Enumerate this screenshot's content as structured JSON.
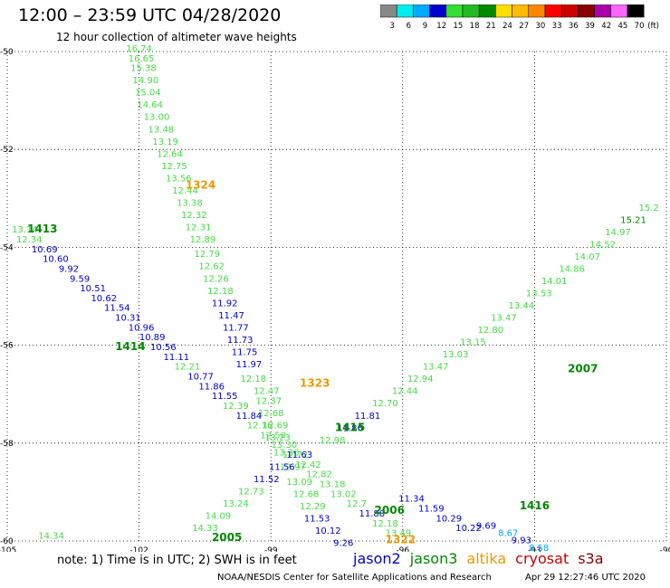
{
  "header": {
    "title": "12:00 – 23:59 UTC 04/28/2020",
    "subtitle": "12 hour collection of altimeter wave heights"
  },
  "colorbar": {
    "labels": [
      "3",
      "6",
      "9",
      "12",
      "15",
      "18",
      "21",
      "24",
      "27",
      "30",
      "33",
      "36",
      "39",
      "42",
      "45",
      "70"
    ],
    "unit": "(ft)",
    "colors": [
      "#888888",
      "#00eeee",
      "#00aaff",
      "#0000cc",
      "#33dd33",
      "#22bb22",
      "#008800",
      "#ffdd00",
      "#ffbb00",
      "#ff8800",
      "#ff0000",
      "#cc0000",
      "#880000",
      "#aa00aa",
      "#ff66ff",
      "#000000"
    ]
  },
  "chart_data": {
    "type": "scatter",
    "xlim": [
      -105,
      -90
    ],
    "ylim": [
      -60,
      -50
    ],
    "x_ticks": [
      "-105",
      "-102",
      "-99",
      "-96",
      "-93",
      "-90"
    ],
    "y_ticks": [
      "-50",
      "-52",
      "-54",
      "-56",
      "-58",
      "-60"
    ],
    "grid": "dotted",
    "series_colors": {
      "jason2": "#0000cc",
      "jason3_light": "#44dd44",
      "jason3_dark": "#008800",
      "altika": "#ee9900",
      "s3a": "#00aaff"
    },
    "points": [
      {
        "lon": -102.0,
        "lat": -50.0,
        "text": "16.74",
        "c": "jason3_light"
      },
      {
        "lon": -101.95,
        "lat": -50.2,
        "text": "16.65",
        "c": "jason3_light"
      },
      {
        "lon": -101.9,
        "lat": -50.4,
        "text": "15.38",
        "c": "jason3_light"
      },
      {
        "lon": -101.85,
        "lat": -50.65,
        "text": "14.90",
        "c": "jason3_light"
      },
      {
        "lon": -101.8,
        "lat": -50.9,
        "text": "15.04",
        "c": "jason3_light"
      },
      {
        "lon": -101.75,
        "lat": -51.15,
        "text": "14.64",
        "c": "jason3_light"
      },
      {
        "lon": -101.6,
        "lat": -51.4,
        "text": "13.00",
        "c": "jason3_light"
      },
      {
        "lon": -101.5,
        "lat": -51.65,
        "text": "13.48",
        "c": "jason3_light"
      },
      {
        "lon": -101.4,
        "lat": -51.9,
        "text": "13.19",
        "c": "jason3_light"
      },
      {
        "lon": -101.3,
        "lat": -52.15,
        "text": "12.64",
        "c": "jason3_light"
      },
      {
        "lon": -101.2,
        "lat": -52.4,
        "text": "12.75",
        "c": "jason3_light"
      },
      {
        "lon": -101.1,
        "lat": -52.65,
        "text": "13.56",
        "c": "jason3_light"
      },
      {
        "lon": -100.95,
        "lat": -52.9,
        "text": "12.44",
        "c": "jason3_light"
      },
      {
        "lon": -100.85,
        "lat": -53.15,
        "text": "13.38",
        "c": "jason3_light"
      },
      {
        "lon": -100.75,
        "lat": -53.4,
        "text": "12.32",
        "c": "jason3_light"
      },
      {
        "lon": -100.65,
        "lat": -53.65,
        "text": "12.31",
        "c": "jason3_light"
      },
      {
        "lon": -100.55,
        "lat": -53.9,
        "text": "12.89",
        "c": "jason3_light"
      },
      {
        "lon": -100.45,
        "lat": -54.2,
        "text": "12.79",
        "c": "jason3_light"
      },
      {
        "lon": -100.35,
        "lat": -54.45,
        "text": "12.62",
        "c": "jason3_light"
      },
      {
        "lon": -100.25,
        "lat": -54.7,
        "text": "12.26",
        "c": "jason3_light"
      },
      {
        "lon": -100.15,
        "lat": -54.95,
        "text": "12.18",
        "c": "jason3_light"
      },
      {
        "lon": -100.05,
        "lat": -55.2,
        "text": "11.92",
        "c": "jason2"
      },
      {
        "lon": -99.9,
        "lat": -55.45,
        "text": "11.47",
        "c": "jason2"
      },
      {
        "lon": -99.8,
        "lat": -55.7,
        "text": "11.77",
        "c": "jason2"
      },
      {
        "lon": -99.7,
        "lat": -55.95,
        "text": "11.73",
        "c": "jason2"
      },
      {
        "lon": -99.6,
        "lat": -56.2,
        "text": "11.75",
        "c": "jason2"
      },
      {
        "lon": -99.5,
        "lat": -56.45,
        "text": "11.97",
        "c": "jason2"
      },
      {
        "lon": -99.4,
        "lat": -56.75,
        "text": "12.18",
        "c": "jason3_light"
      },
      {
        "lon": -99.1,
        "lat": -57.0,
        "text": "12.47",
        "c": "jason3_light"
      },
      {
        "lon": -99.05,
        "lat": -57.2,
        "text": "12.37",
        "c": "jason3_light"
      },
      {
        "lon": -99.0,
        "lat": -57.45,
        "text": "12.68",
        "c": "jason3_light"
      },
      {
        "lon": -98.9,
        "lat": -57.7,
        "text": "12.69",
        "c": "jason3_light"
      },
      {
        "lon": -98.85,
        "lat": -57.95,
        "text": "13.23",
        "c": "jason3_light"
      },
      {
        "lon": -98.65,
        "lat": -58.25,
        "text": "13.26",
        "c": "jason3_light"
      },
      {
        "lon": -98.5,
        "lat": -58.55,
        "text": "12.97",
        "c": "jason3_light"
      },
      {
        "lon": -98.35,
        "lat": -58.85,
        "text": "13.09",
        "c": "jason3_light"
      },
      {
        "lon": -98.2,
        "lat": -59.1,
        "text": "12.68",
        "c": "jason3_light"
      },
      {
        "lon": -98.05,
        "lat": -59.35,
        "text": "12.29",
        "c": "jason3_light"
      },
      {
        "lon": -97.95,
        "lat": -59.6,
        "text": "11.53",
        "c": "jason2"
      },
      {
        "lon": -97.7,
        "lat": -59.85,
        "text": "10.12",
        "c": "jason2"
      },
      {
        "lon": -97.35,
        "lat": -60.1,
        "text": "9.26",
        "c": "jason2"
      },
      {
        "lon": -104.6,
        "lat": -53.7,
        "text": "13.14",
        "c": "jason3_light"
      },
      {
        "lon": -104.5,
        "lat": -53.9,
        "text": "12.34",
        "c": "jason3_light"
      },
      {
        "lon": -104.15,
        "lat": -54.1,
        "text": "10.69",
        "c": "jason2"
      },
      {
        "lon": -103.9,
        "lat": -54.3,
        "text": "10.60",
        "c": "jason2"
      },
      {
        "lon": -103.6,
        "lat": -54.5,
        "text": "9.92",
        "c": "jason2"
      },
      {
        "lon": -103.35,
        "lat": -54.7,
        "text": "9.59",
        "c": "jason2"
      },
      {
        "lon": -103.05,
        "lat": -54.9,
        "text": "10.51",
        "c": "jason2"
      },
      {
        "lon": -102.8,
        "lat": -55.1,
        "text": "10.62",
        "c": "jason2"
      },
      {
        "lon": -102.5,
        "lat": -55.3,
        "text": "11.54",
        "c": "jason2"
      },
      {
        "lon": -102.25,
        "lat": -55.5,
        "text": "10.31",
        "c": "jason2"
      },
      {
        "lon": -101.95,
        "lat": -55.7,
        "text": "10.96",
        "c": "jason2"
      },
      {
        "lon": -101.7,
        "lat": -55.9,
        "text": "10.89",
        "c": "jason2"
      },
      {
        "lon": -101.45,
        "lat": -56.1,
        "text": "10.56",
        "c": "jason2"
      },
      {
        "lon": -101.15,
        "lat": -56.3,
        "text": "11.11",
        "c": "jason2"
      },
      {
        "lon": -100.9,
        "lat": -56.5,
        "text": "12.21",
        "c": "jason3_light"
      },
      {
        "lon": -100.6,
        "lat": -56.7,
        "text": "10.77",
        "c": "jason2"
      },
      {
        "lon": -100.35,
        "lat": -56.9,
        "text": "11.86",
        "c": "jason2"
      },
      {
        "lon": -100.05,
        "lat": -57.1,
        "text": "11.55",
        "c": "jason2"
      },
      {
        "lon": -99.8,
        "lat": -57.3,
        "text": "12.39",
        "c": "jason3_light"
      },
      {
        "lon": -99.5,
        "lat": -57.5,
        "text": "11.84",
        "c": "jason2"
      },
      {
        "lon": -99.25,
        "lat": -57.7,
        "text": "12.16",
        "c": "jason3_light"
      },
      {
        "lon": -98.95,
        "lat": -57.9,
        "text": "12.50",
        "c": "jason3_light"
      },
      {
        "lon": -98.7,
        "lat": -58.1,
        "text": "13.30",
        "c": "jason3_light"
      },
      {
        "lon": -98.45,
        "lat": -58.3,
        "text": "12.72",
        "c": "jason3_light"
      },
      {
        "lon": -98.15,
        "lat": -58.5,
        "text": "12.42",
        "c": "jason3_light"
      },
      {
        "lon": -97.9,
        "lat": -58.7,
        "text": "12.82",
        "c": "jason3_light"
      },
      {
        "lon": -97.6,
        "lat": -58.9,
        "text": "13.18",
        "c": "jason3_light"
      },
      {
        "lon": -97.35,
        "lat": -59.1,
        "text": "13.02",
        "c": "jason3_light"
      },
      {
        "lon": -97.05,
        "lat": -59.3,
        "text": "12.7",
        "c": "jason3_light"
      },
      {
        "lon": -96.7,
        "lat": -59.5,
        "text": "11.88",
        "c": "jason2"
      },
      {
        "lon": -96.4,
        "lat": -59.7,
        "text": "12.18",
        "c": "jason3_light"
      },
      {
        "lon": -96.1,
        "lat": -59.9,
        "text": "13.49",
        "c": "jason3_light"
      },
      {
        "lon": -95.8,
        "lat": -59.2,
        "text": "11.34",
        "c": "jason2"
      },
      {
        "lon": -95.35,
        "lat": -59.4,
        "text": "11.59",
        "c": "jason2"
      },
      {
        "lon": -94.95,
        "lat": -59.6,
        "text": "10.29",
        "c": "jason2"
      },
      {
        "lon": -94.5,
        "lat": -59.8,
        "text": "10.22",
        "c": "jason2"
      },
      {
        "lon": -94.1,
        "lat": -59.75,
        "text": "9.69",
        "c": "jason2"
      },
      {
        "lon": -93.6,
        "lat": -59.9,
        "text": "8.67",
        "c": "s3a"
      },
      {
        "lon": -93.3,
        "lat": -60.05,
        "text": "9.93",
        "c": "jason2"
      },
      {
        "lon": -92.9,
        "lat": -60.2,
        "text": "8.58",
        "c": "s3a"
      },
      {
        "lon": -104.0,
        "lat": -59.95,
        "text": "14.34",
        "c": "jason3_light"
      },
      {
        "lon": -100.5,
        "lat": -59.8,
        "text": "14.33",
        "c": "jason3_light"
      },
      {
        "lon": -100.2,
        "lat": -59.55,
        "text": "14.09",
        "c": "jason3_light"
      },
      {
        "lon": -99.8,
        "lat": -59.3,
        "text": "13.24",
        "c": "jason3_light"
      },
      {
        "lon": -99.45,
        "lat": -59.05,
        "text": "12.73",
        "c": "jason3_light"
      },
      {
        "lon": -99.1,
        "lat": -58.8,
        "text": "11.52",
        "c": "jason2"
      },
      {
        "lon": -98.75,
        "lat": -58.55,
        "text": "11.56",
        "c": "jason2"
      },
      {
        "lon": -98.35,
        "lat": -58.3,
        "text": "11.63",
        "c": "jason2"
      },
      {
        "lon": -97.6,
        "lat": -58.0,
        "text": "12.98",
        "c": "jason3_light"
      },
      {
        "lon": -97.2,
        "lat": -57.75,
        "text": "11.86",
        "c": "jason2"
      },
      {
        "lon": -96.8,
        "lat": -57.5,
        "text": "11.81",
        "c": "jason2"
      },
      {
        "lon": -96.4,
        "lat": -57.25,
        "text": "12.70",
        "c": "jason3_light"
      },
      {
        "lon": -95.95,
        "lat": -57.0,
        "text": "12.44",
        "c": "jason3_light"
      },
      {
        "lon": -95.6,
        "lat": -56.75,
        "text": "12.94",
        "c": "jason3_light"
      },
      {
        "lon": -95.25,
        "lat": -56.5,
        "text": "13.47",
        "c": "jason3_light"
      },
      {
        "lon": -94.8,
        "lat": -56.25,
        "text": "13.03",
        "c": "jason3_light"
      },
      {
        "lon": -94.4,
        "lat": -56.0,
        "text": "13.15",
        "c": "jason3_light"
      },
      {
        "lon": -94.0,
        "lat": -55.75,
        "text": "12.80",
        "c": "jason3_light"
      },
      {
        "lon": -93.7,
        "lat": -55.5,
        "text": "13.47",
        "c": "jason3_light"
      },
      {
        "lon": -93.3,
        "lat": -55.25,
        "text": "13.44",
        "c": "jason3_light"
      },
      {
        "lon": -92.9,
        "lat": -55.0,
        "text": "13.53",
        "c": "jason3_light"
      },
      {
        "lon": -92.55,
        "lat": -54.75,
        "text": "14.01",
        "c": "jason3_light"
      },
      {
        "lon": -92.15,
        "lat": -54.5,
        "text": "14.86",
        "c": "jason3_light"
      },
      {
        "lon": -91.8,
        "lat": -54.25,
        "text": "14.07",
        "c": "jason3_light"
      },
      {
        "lon": -91.45,
        "lat": -54.0,
        "text": "14.52",
        "c": "jason3_light"
      },
      {
        "lon": -91.1,
        "lat": -53.75,
        "text": "14.97",
        "c": "jason3_light"
      },
      {
        "lon": -90.75,
        "lat": -53.5,
        "text": "15.21",
        "c": "jason3_dark"
      },
      {
        "lon": -90.4,
        "lat": -53.25,
        "text": "15.2",
        "c": "jason3_light"
      }
    ],
    "pass_labels": [
      {
        "lon": -104.2,
        "lat": -53.7,
        "text": "1413",
        "c": "jason3_dark"
      },
      {
        "lon": -102.2,
        "lat": -56.1,
        "text": "1414",
        "c": "jason3_dark"
      },
      {
        "lon": -100.6,
        "lat": -52.8,
        "text": "1324",
        "c": "altika"
      },
      {
        "lon": -98.0,
        "lat": -56.85,
        "text": "1323",
        "c": "altika"
      },
      {
        "lon": -97.2,
        "lat": -57.75,
        "text": "1415",
        "c": "jason3_dark"
      },
      {
        "lon": -96.3,
        "lat": -59.45,
        "text": "2006",
        "c": "jason3_dark"
      },
      {
        "lon": -93.0,
        "lat": -59.35,
        "text": "1416",
        "c": "jason3_dark"
      },
      {
        "lon": -91.9,
        "lat": -56.55,
        "text": "2007",
        "c": "jason3_dark"
      },
      {
        "lon": -100.0,
        "lat": -60.0,
        "text": "2005",
        "c": "jason3_dark"
      },
      {
        "lon": -96.05,
        "lat": -60.05,
        "text": "1322",
        "c": "altika"
      }
    ]
  },
  "footer": {
    "note": "note:  1) Time is in UTC;  2) SWH is in feet",
    "satellites": [
      {
        "name": "jason2",
        "color": "#0000cc"
      },
      {
        "name": "jason3",
        "color": "#008800"
      },
      {
        "name": "altika",
        "color": "#ee9900"
      },
      {
        "name": "cryosat",
        "color": "#cc0000"
      },
      {
        "name": "s3a",
        "color": "#880000"
      }
    ],
    "credit": "NOAA/NESDIS Center for Satellite Applications and Research",
    "timestamp": "Apr 29 12:27:46 UTC 2020"
  }
}
